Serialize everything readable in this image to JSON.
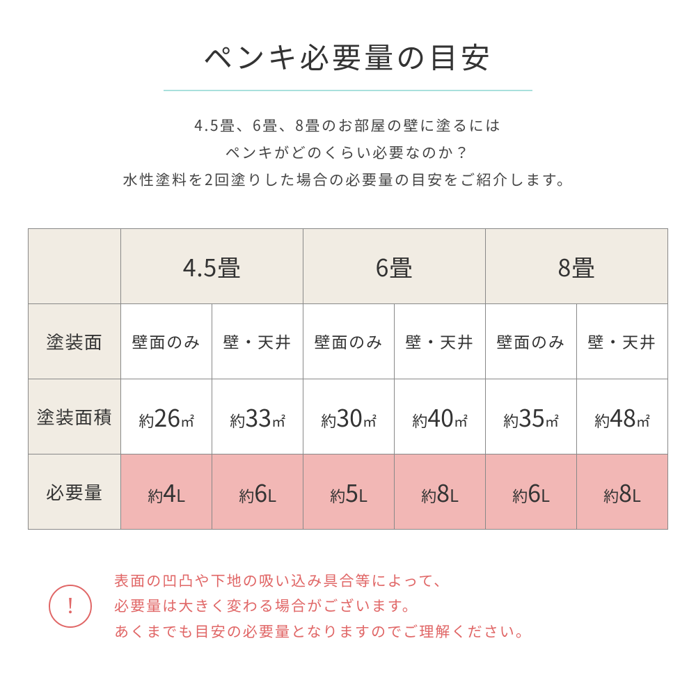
{
  "title": "ペンキ必要量の目安",
  "intro_lines": [
    "4.5畳、6畳、8畳のお部屋の壁に塗るには",
    "ペンキがどのくらい必要なのか？",
    "水性塗料を2回塗りした場合の必要量の目安をご紹介します。"
  ],
  "rooms": [
    "4.5畳",
    "6畳",
    "8畳"
  ],
  "row_labels": {
    "surface": "塗装面",
    "area": "塗装面積",
    "req": "必要量"
  },
  "surface_labels": {
    "wall": "壁面のみ",
    "ceiling": "壁・天井"
  },
  "area_prefix": "約",
  "area_unit": "㎡",
  "area_values": [
    "26",
    "33",
    "30",
    "40",
    "35",
    "48"
  ],
  "req_prefix": "約",
  "req_unit": "L",
  "req_values": [
    "4",
    "6",
    "5",
    "8",
    "6",
    "8"
  ],
  "note_lines": [
    "表面の凹凸や下地の吸い込み具合等によって、",
    "必要量は大きく変わる場合がございます。",
    "あくまでも目安の必要量となりますのでご理解ください。"
  ],
  "colors": {
    "header_bg": "#f1ece3",
    "req_bg": "#f2b7b5",
    "title_underline": "#a8e0dc",
    "note_color": "#e06666",
    "border": "#888888",
    "text": "#333333",
    "bg": "#ffffff"
  }
}
